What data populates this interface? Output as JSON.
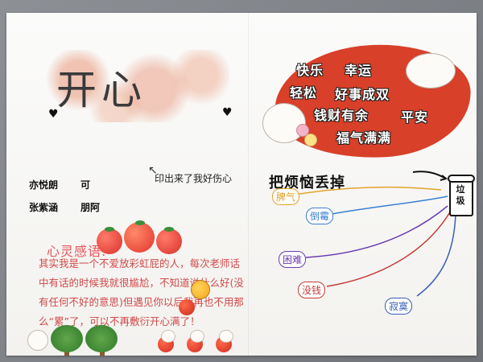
{
  "left": {
    "title": "开心",
    "note": "印出来了我好伤心",
    "names": [
      [
        "亦悦朗",
        "可"
      ],
      [
        "张紫涵",
        "朋阿"
      ]
    ],
    "section_title": "心灵感语:",
    "body": "其实我是一个不爱放彩虹屁的人，每次老师话中有话的时候我就很尴尬，不知道说什么好(没有任何不好的意思)但遇见你以后我再也不用那么“累”了，可以不再敷衍开心满了！"
  },
  "right": {
    "wishes": [
      {
        "text": "快乐"
      },
      {
        "text": "幸运"
      },
      {
        "text": "轻松"
      },
      {
        "text": "好事成双"
      },
      {
        "text": "钱财有余"
      },
      {
        "text": "平安"
      },
      {
        "text": "福气满满"
      }
    ],
    "heading": "把烦恼丢掉",
    "bin_label": "垃圾",
    "worries": [
      {
        "text": "脾气",
        "color": "#e0a42a"
      },
      {
        "text": "倒霉",
        "color": "#3a7fd0"
      },
      {
        "text": "困难",
        "color": "#6a3bb0"
      },
      {
        "text": "没钱",
        "color": "#c43a3a"
      },
      {
        "text": "寂寞",
        "color": "#3a5fb8"
      }
    ]
  },
  "colors": {
    "accent_red": "#d8402a",
    "text_red": "#cf4a4a",
    "paper": "#f6f5f2"
  }
}
